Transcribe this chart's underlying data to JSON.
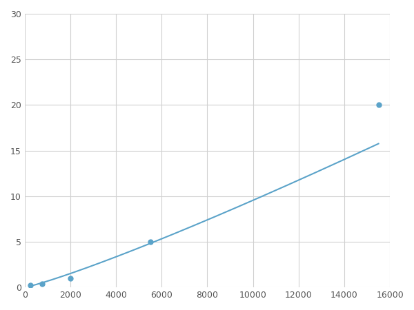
{
  "x_points": [
    250,
    750,
    2000,
    5500,
    15500
  ],
  "y_points": [
    0.2,
    0.4,
    1.0,
    5.0,
    20.0
  ],
  "line_color": "#5ba3c9",
  "marker_color": "#5ba3c9",
  "marker_size": 5,
  "line_width": 1.5,
  "xlim": [
    0,
    16000
  ],
  "ylim": [
    0,
    30
  ],
  "xticks": [
    0,
    2000,
    4000,
    6000,
    8000,
    10000,
    12000,
    14000,
    16000
  ],
  "yticks": [
    0,
    5,
    10,
    15,
    20,
    25,
    30
  ],
  "grid_color": "#d0d0d0",
  "background_color": "#ffffff",
  "figsize": [
    6.0,
    4.5
  ],
  "dpi": 100
}
